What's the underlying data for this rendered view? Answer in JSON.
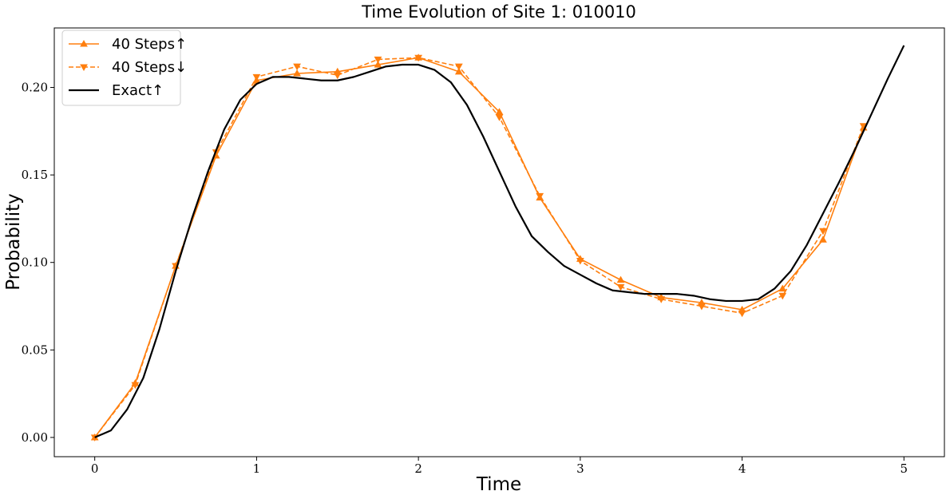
{
  "chart_data": {
    "type": "line",
    "title": "Time Evolution of Site 1: 010010",
    "xlabel": "Time",
    "ylabel": "Probability",
    "xlim": [
      -0.25,
      5.25
    ],
    "ylim": [
      -0.011,
      0.234
    ],
    "xticks": [
      0,
      1,
      2,
      3,
      4,
      5
    ],
    "xtick_labels": [
      "0",
      "1",
      "2",
      "3",
      "4",
      "5"
    ],
    "yticks": [
      0.0,
      0.05,
      0.1,
      0.15,
      0.2
    ],
    "ytick_labels": [
      "0.00",
      "0.05",
      "0.10",
      "0.15",
      "0.20"
    ],
    "grid": false,
    "legend_position": "top-left",
    "series": [
      {
        "name": "40 Steps↑",
        "color": "#ff7f0e",
        "line_style": "solid",
        "marker": "triangle-up",
        "x": [
          0,
          0.25,
          0.5,
          0.75,
          1.0,
          1.25,
          1.5,
          1.75,
          2.0,
          2.25,
          2.5,
          2.75,
          3.0,
          3.25,
          3.5,
          3.75,
          4.0,
          4.25,
          4.5,
          4.75
        ],
        "y": [
          0.0,
          0.031,
          0.098,
          0.161,
          0.204,
          0.208,
          0.209,
          0.213,
          0.217,
          0.209,
          0.186,
          0.137,
          0.102,
          0.09,
          0.08,
          0.077,
          0.073,
          0.085,
          0.113,
          0.177
        ]
      },
      {
        "name": "40 Steps↓",
        "color": "#ff7f0e",
        "line_style": "dashed",
        "marker": "triangle-down",
        "x": [
          0,
          0.25,
          0.5,
          0.75,
          1.0,
          1.25,
          1.5,
          1.75,
          2.0,
          2.25,
          2.5,
          2.75,
          3.0,
          3.25,
          3.5,
          3.75,
          4.0,
          4.25,
          4.5,
          4.75
        ],
        "y": [
          0.0,
          0.03,
          0.098,
          0.163,
          0.206,
          0.212,
          0.207,
          0.216,
          0.217,
          0.212,
          0.183,
          0.138,
          0.101,
          0.086,
          0.079,
          0.075,
          0.071,
          0.081,
          0.118,
          0.178
        ]
      },
      {
        "name": "Exact↑",
        "color": "#000000",
        "line_style": "solid",
        "marker": "none",
        "x": [
          0,
          0.1,
          0.2,
          0.3,
          0.4,
          0.5,
          0.6,
          0.7,
          0.8,
          0.9,
          1.0,
          1.1,
          1.2,
          1.3,
          1.4,
          1.5,
          1.6,
          1.7,
          1.8,
          1.9,
          2.0,
          2.1,
          2.2,
          2.3,
          2.4,
          2.5,
          2.6,
          2.7,
          2.8,
          2.9,
          3.0,
          3.1,
          3.2,
          3.3,
          3.4,
          3.5,
          3.6,
          3.7,
          3.8,
          3.9,
          4.0,
          4.1,
          4.2,
          4.3,
          4.4,
          4.5,
          4.6,
          4.7,
          4.8,
          4.9,
          5.0
        ],
        "y": [
          0.0,
          0.004,
          0.016,
          0.034,
          0.062,
          0.095,
          0.125,
          0.152,
          0.176,
          0.193,
          0.202,
          0.206,
          0.206,
          0.205,
          0.204,
          0.204,
          0.206,
          0.209,
          0.212,
          0.213,
          0.213,
          0.21,
          0.203,
          0.19,
          0.172,
          0.152,
          0.132,
          0.115,
          0.106,
          0.098,
          0.093,
          0.088,
          0.084,
          0.083,
          0.082,
          0.082,
          0.082,
          0.081,
          0.079,
          0.078,
          0.078,
          0.079,
          0.085,
          0.095,
          0.11,
          0.128,
          0.146,
          0.165,
          0.185,
          0.205,
          0.224
        ]
      }
    ]
  }
}
